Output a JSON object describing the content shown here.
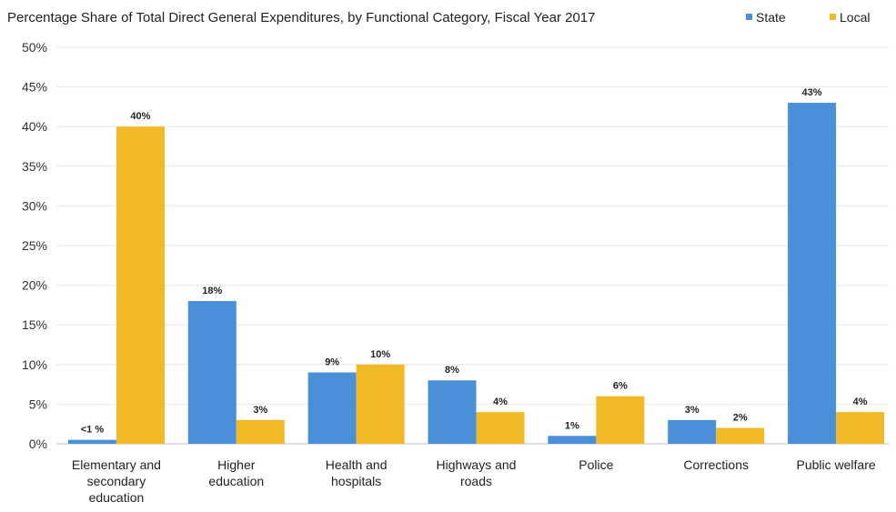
{
  "chart_data": {
    "type": "bar",
    "title": "Percentage Share of Total Direct General Expenditures, by Functional Category, Fiscal Year 2017",
    "xlabel": "",
    "ylabel": "",
    "ylim": [
      0,
      50
    ],
    "yticks": [
      "0%",
      "5%",
      "10%",
      "15%",
      "20%",
      "25%",
      "30%",
      "35%",
      "40%",
      "45%",
      "50%"
    ],
    "grid": true,
    "legend_position": "top-right",
    "categories": [
      [
        "Elementary and",
        "secondary",
        "education"
      ],
      [
        "Higher",
        "education"
      ],
      [
        "Health and",
        "hospitals"
      ],
      [
        "Highways and",
        "roads"
      ],
      [
        "Police"
      ],
      [
        "Corrections"
      ],
      [
        "Public welfare"
      ]
    ],
    "series": [
      {
        "name": "State",
        "color": "#4a90d9",
        "values": [
          0.5,
          18,
          9,
          8,
          1,
          3,
          43
        ],
        "labels": [
          "<1 %",
          "18%",
          "9%",
          "8%",
          "1%",
          "3%",
          "43%"
        ]
      },
      {
        "name": "Local",
        "color": "#f2b927",
        "values": [
          40,
          3,
          10,
          4,
          6,
          2,
          4
        ],
        "labels": [
          "40%",
          "3%",
          "10%",
          "4%",
          "6%",
          "2%",
          "4%"
        ]
      }
    ]
  }
}
